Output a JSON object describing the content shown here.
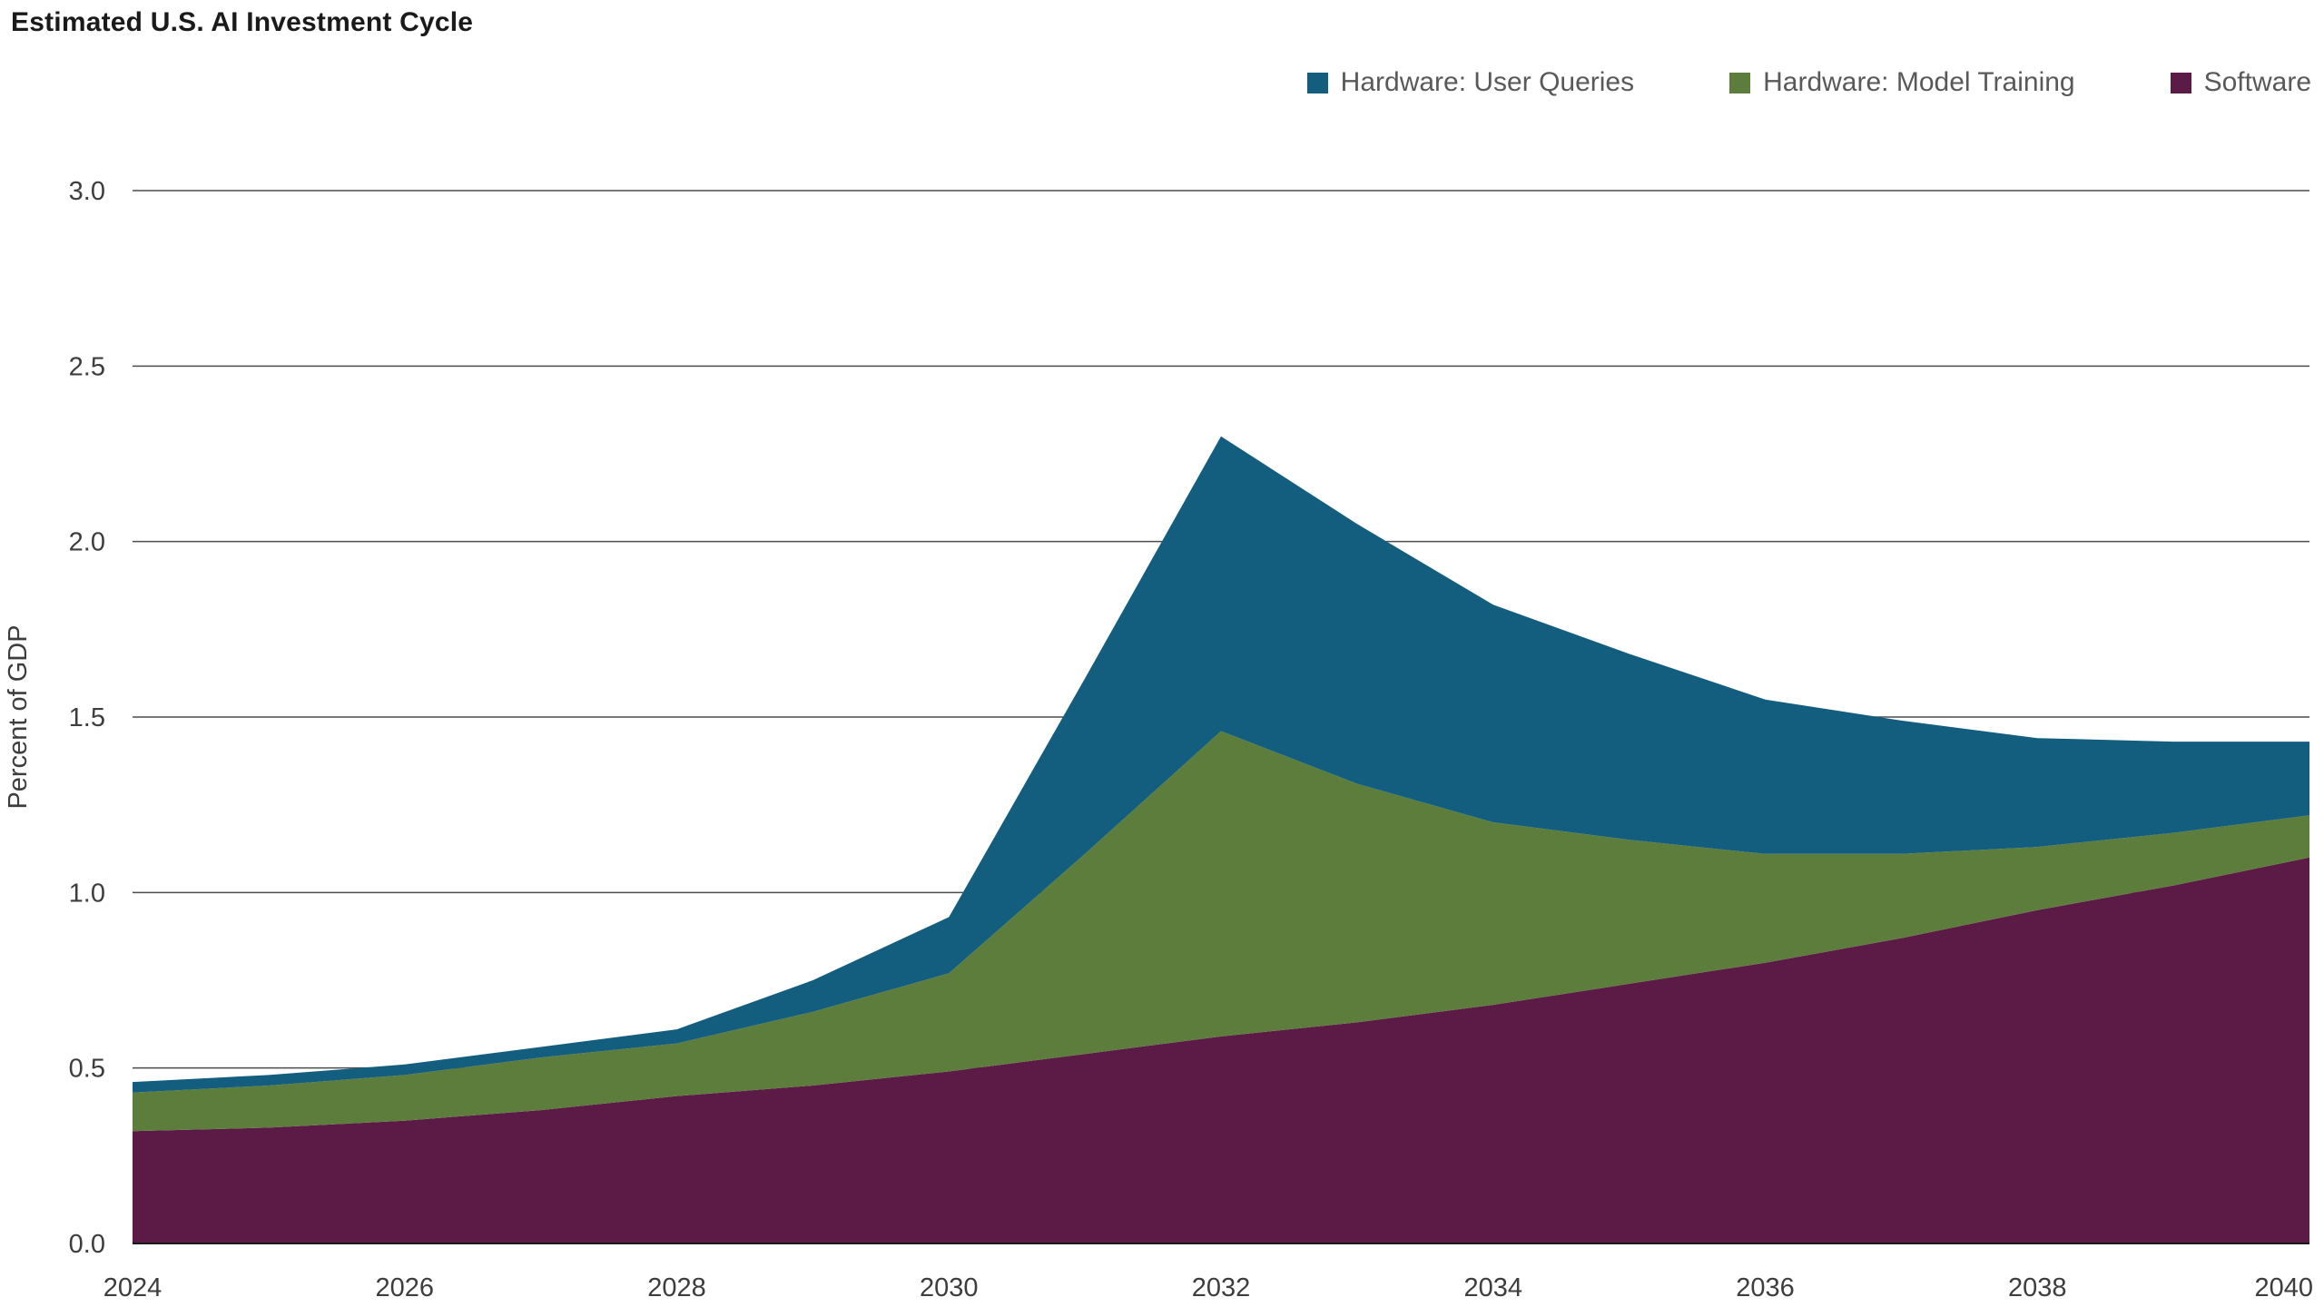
{
  "chart": {
    "title": "Estimated U.S. AI Investment Cycle",
    "ylabel": "Percent of GDP"
  },
  "legend": {
    "items": [
      {
        "label": "Hardware: User Queries",
        "color": "#135e7e"
      },
      {
        "label": "Hardware: Model Training",
        "color": "#5d7d3c"
      },
      {
        "label": "Software",
        "color": "#5c1a46"
      }
    ]
  },
  "chart_data": {
    "type": "area",
    "stacked": true,
    "title": "Estimated U.S. AI Investment Cycle",
    "xlabel": "",
    "ylabel": "Percent of GDP",
    "ylim": [
      0,
      3.0
    ],
    "grid": "horizontal",
    "legend_position": "top-right",
    "x": [
      2024,
      2025,
      2026,
      2027,
      2028,
      2029,
      2030,
      2031,
      2032,
      2033,
      2034,
      2035,
      2036,
      2037,
      2038,
      2039,
      2040
    ],
    "series": [
      {
        "name": "Software",
        "color": "#5c1a46",
        "values": [
          0.32,
          0.33,
          0.35,
          0.38,
          0.42,
          0.45,
          0.49,
          0.54,
          0.59,
          0.63,
          0.68,
          0.74,
          0.8,
          0.87,
          0.95,
          1.02,
          1.1
        ]
      },
      {
        "name": "Hardware: Model Training",
        "color": "#5d7d3c",
        "values": [
          0.11,
          0.12,
          0.13,
          0.15,
          0.15,
          0.21,
          0.28,
          0.57,
          0.87,
          0.68,
          0.52,
          0.41,
          0.31,
          0.24,
          0.18,
          0.15,
          0.12
        ]
      },
      {
        "name": "Hardware: User Queries",
        "color": "#135e7e",
        "values": [
          0.03,
          0.03,
          0.03,
          0.03,
          0.04,
          0.09,
          0.16,
          0.5,
          0.84,
          0.74,
          0.62,
          0.53,
          0.44,
          0.38,
          0.31,
          0.26,
          0.21
        ]
      }
    ],
    "y_ticks": [
      {
        "value": 0.0,
        "label": "0.0"
      },
      {
        "value": 0.5,
        "label": "0.5"
      },
      {
        "value": 1.0,
        "label": "1.0"
      },
      {
        "value": 1.5,
        "label": "1.5"
      },
      {
        "value": 2.0,
        "label": "2.0"
      },
      {
        "value": 2.5,
        "label": "2.5"
      },
      {
        "value": 3.0,
        "label": "3.0"
      }
    ],
    "x_tick_labels": [
      "2024",
      "2026",
      "2028",
      "2030",
      "2032",
      "2034",
      "2036",
      "2038",
      "2040"
    ]
  }
}
